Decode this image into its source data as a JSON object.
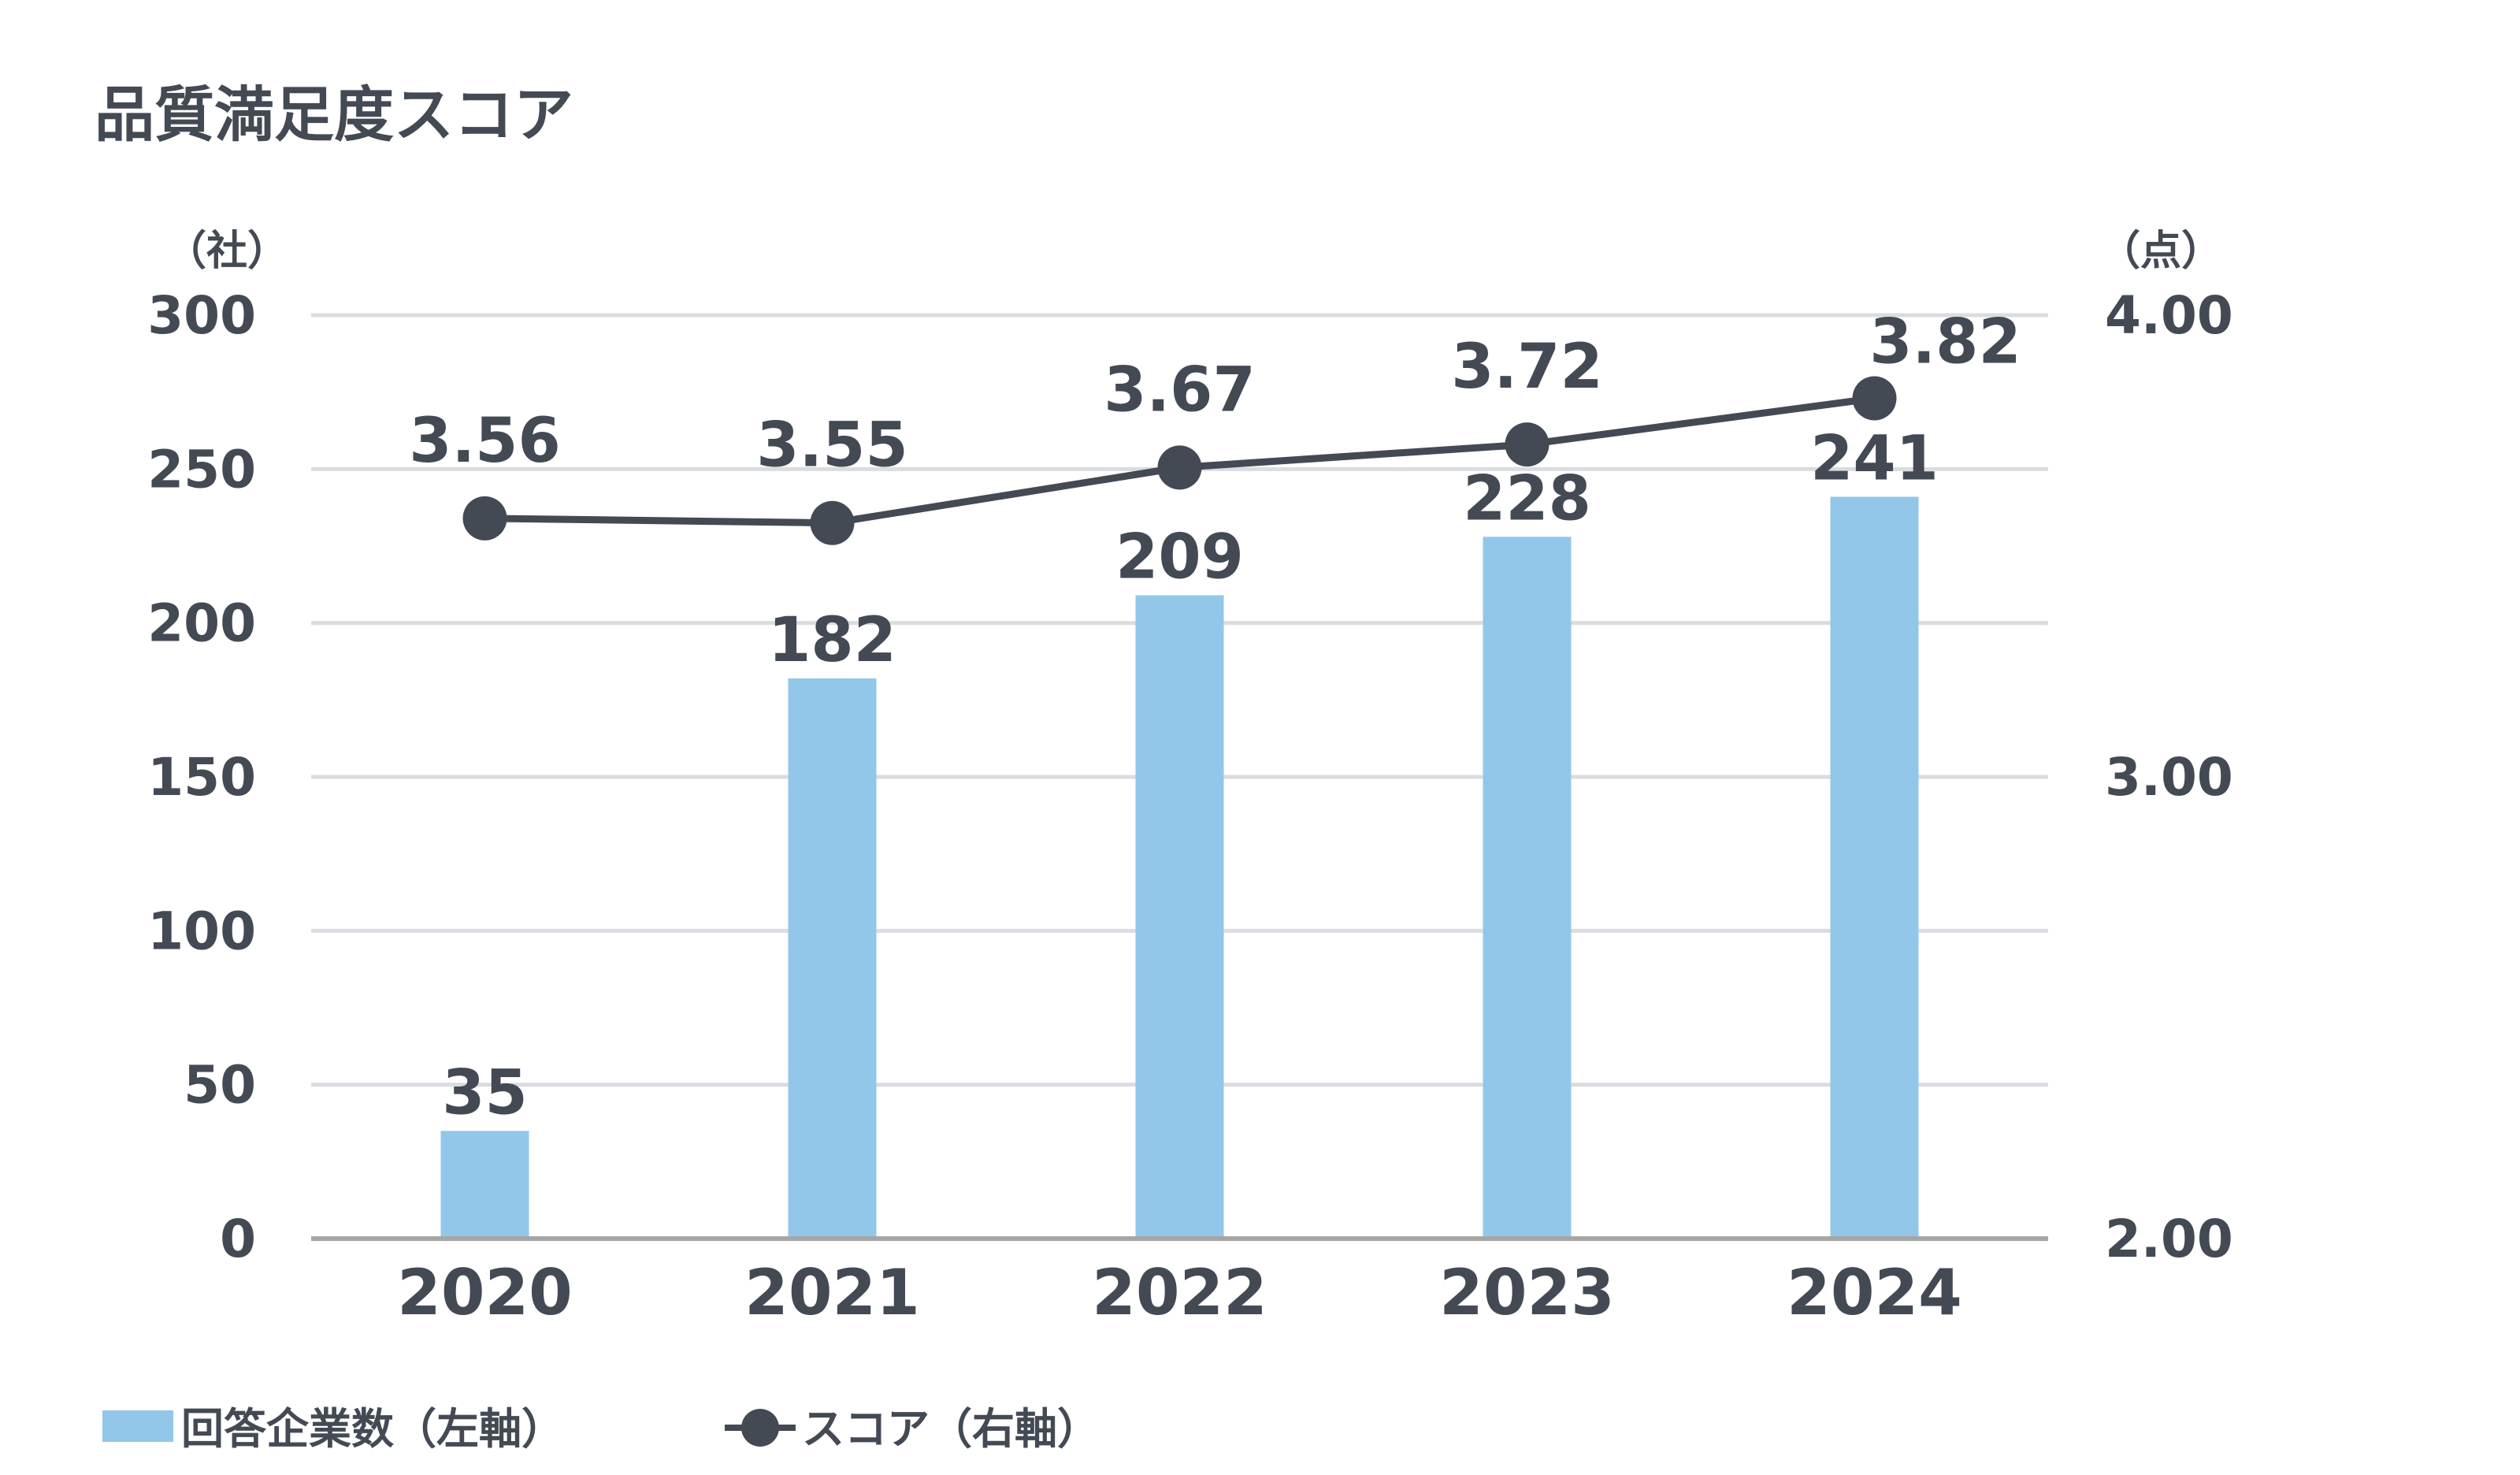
{
  "chart_data": {
    "type": "bar",
    "title": "品質満足度スコア",
    "categories": [
      "2020",
      "2021",
      "2022",
      "2023",
      "2024"
    ],
    "series": [
      {
        "name": "回答企業数（左軸）",
        "type": "bar",
        "axis": "left",
        "values": [
          35,
          182,
          209,
          228,
          241
        ],
        "color": "#92c7ea"
      },
      {
        "name": "スコア（右軸）",
        "type": "line",
        "axis": "right",
        "values": [
          3.56,
          3.55,
          3.67,
          3.72,
          3.82
        ],
        "color": "#434a54"
      }
    ],
    "y_left": {
      "unit": "（社）",
      "range": [
        0,
        300
      ],
      "ticks": [
        "0",
        "50",
        "100",
        "150",
        "200",
        "250",
        "300"
      ]
    },
    "y_right": {
      "unit": "（点）",
      "range": [
        2.0,
        4.0
      ],
      "ticks": [
        "2.00",
        "3.00",
        "4.00"
      ]
    },
    "gridlines": true,
    "legend_position": "bottom-left",
    "colors": {
      "text": "#434a54",
      "grid": "#d9dde1",
      "axis": "#a6a6a6"
    }
  }
}
